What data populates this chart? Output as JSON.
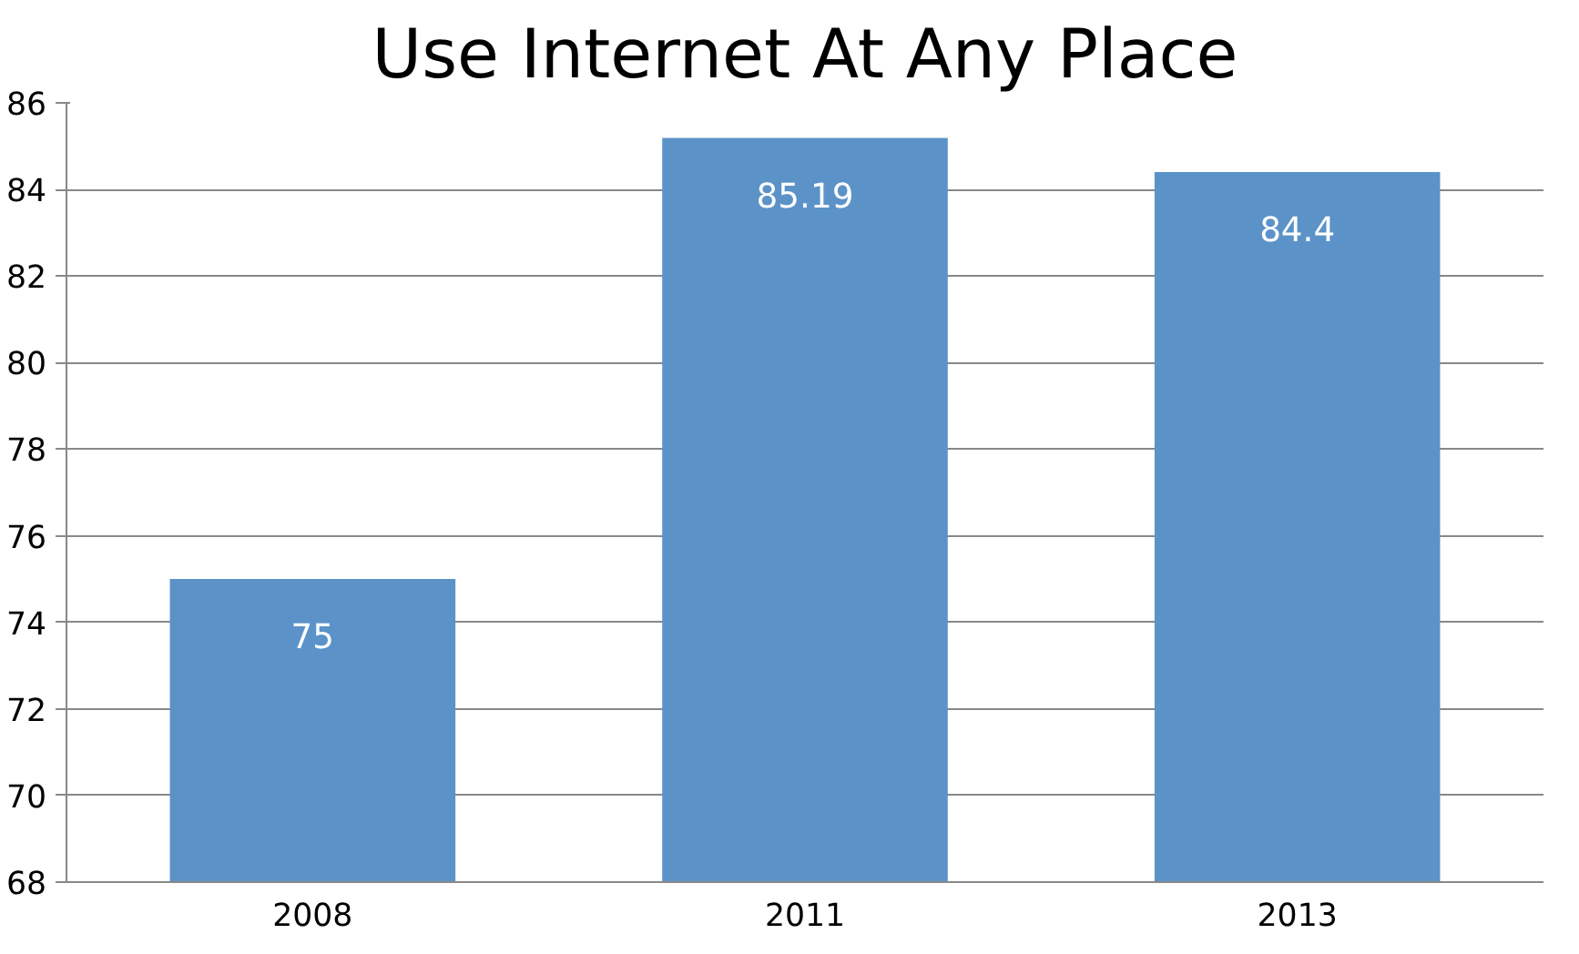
{
  "chart_data": {
    "type": "bar",
    "title": "Use Internet At Any Place",
    "categories": [
      "2008",
      "2011",
      "2013"
    ],
    "values": [
      75,
      85.19,
      84.4
    ],
    "color": "#5b93c9",
    "ylim": [
      68,
      86
    ],
    "yticks": [
      68,
      70,
      72,
      74,
      76,
      78,
      80,
      82,
      84,
      86
    ],
    "grid": "y",
    "data_labels": true
  }
}
